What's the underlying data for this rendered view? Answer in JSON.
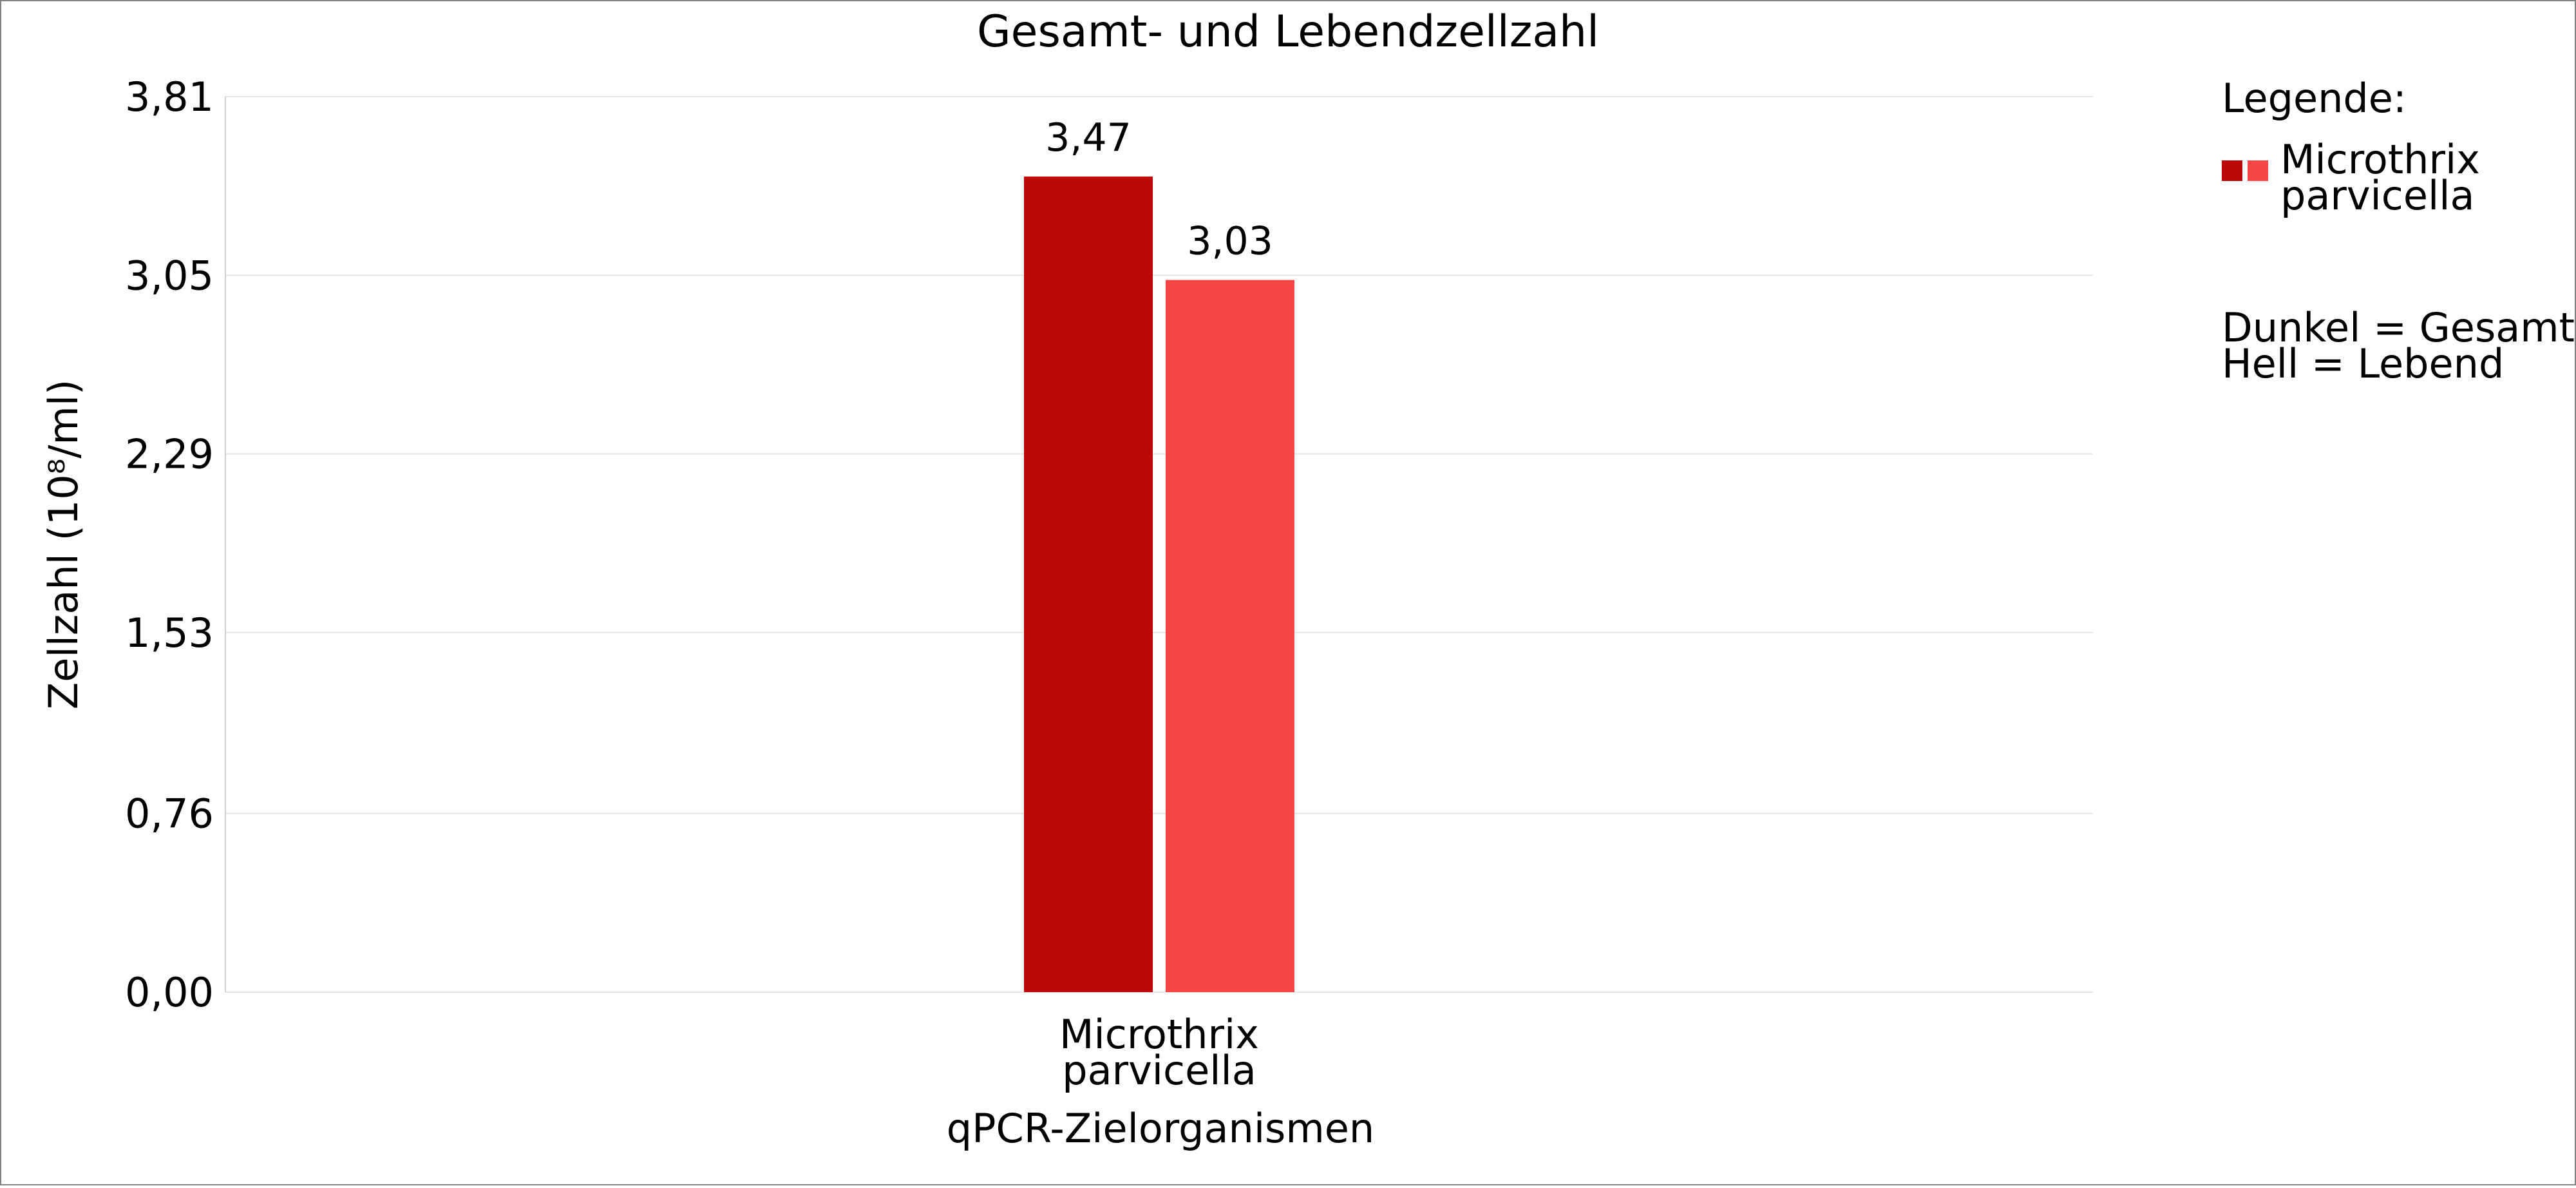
{
  "chart_data": {
    "type": "bar",
    "title": "Gesamt- und Lebendzellzahl",
    "xlabel": "qPCR-Zielorganismen",
    "ylabel": "Zellzahl (10⁸/ml)",
    "categories": [
      [
        "Microthrix",
        "parvicella"
      ]
    ],
    "series": [
      {
        "key": "gesamt",
        "color": "#BD0808",
        "values": [
          3.47
        ],
        "value_labels": [
          "3,47"
        ]
      },
      {
        "key": "lebend",
        "color": "#F74646",
        "values": [
          3.03
        ],
        "value_labels": [
          "3,03"
        ]
      }
    ],
    "yticks": [
      {
        "value": 0.0,
        "label": "0,00"
      },
      {
        "value": 0.76,
        "label": "0,76"
      },
      {
        "value": 1.53,
        "label": "1,53"
      },
      {
        "value": 2.29,
        "label": "2,29"
      },
      {
        "value": 3.05,
        "label": "3,05"
      },
      {
        "value": 3.81,
        "label": "3,81"
      }
    ],
    "ylim": [
      0,
      3.81
    ],
    "grid": true,
    "legend": {
      "placement": "right",
      "title": "Legende:",
      "items": [
        {
          "label_lines": [
            "Microthrix",
            "parvicella"
          ],
          "swatches": [
            "#BD0808",
            "#F74646"
          ]
        }
      ],
      "notes": [
        "Dunkel = Gesamt",
        "Hell = Lebend"
      ]
    }
  },
  "colors": {
    "grid": "#E6E6E6",
    "axis": "#D0D0D0",
    "border": "#808080"
  }
}
